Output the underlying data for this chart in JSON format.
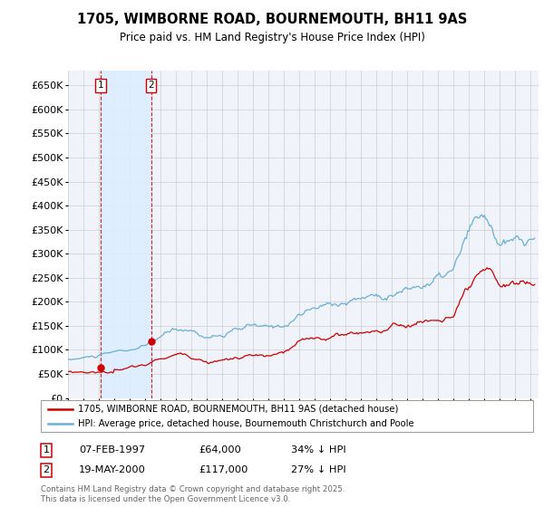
{
  "title": "1705, WIMBORNE ROAD, BOURNEMOUTH, BH11 9AS",
  "subtitle": "Price paid vs. HM Land Registry's House Price Index (HPI)",
  "legend_label_red": "1705, WIMBORNE ROAD, BOURNEMOUTH, BH11 9AS (detached house)",
  "legend_label_blue": "HPI: Average price, detached house, Bournemouth Christchurch and Poole",
  "footnote": "Contains HM Land Registry data © Crown copyright and database right 2025.\nThis data is licensed under the Open Government Licence v3.0.",
  "transaction_labels": [
    {
      "num": "1",
      "date": "07-FEB-1997",
      "price": "£64,000",
      "hpi": "34% ↓ HPI",
      "x_year": 1997.1,
      "y_val": 64000
    },
    {
      "num": "2",
      "date": "19-MAY-2000",
      "price": "£117,000",
      "hpi": "27% ↓ HPI",
      "x_year": 2000.38,
      "y_val": 117000
    }
  ],
  "red_color": "#cc0000",
  "blue_color": "#6baed6",
  "shade_color": "#ddeeff",
  "grid_color": "#cccccc",
  "background_color": "#f0f4fa",
  "plot_bg": "#ffffff",
  "ylim": [
    0,
    680000
  ],
  "yticks": [
    0,
    50000,
    100000,
    150000,
    200000,
    250000,
    300000,
    350000,
    400000,
    450000,
    500000,
    550000,
    600000,
    650000
  ],
  "xlim_start": 1995.0,
  "xlim_end": 2025.5
}
